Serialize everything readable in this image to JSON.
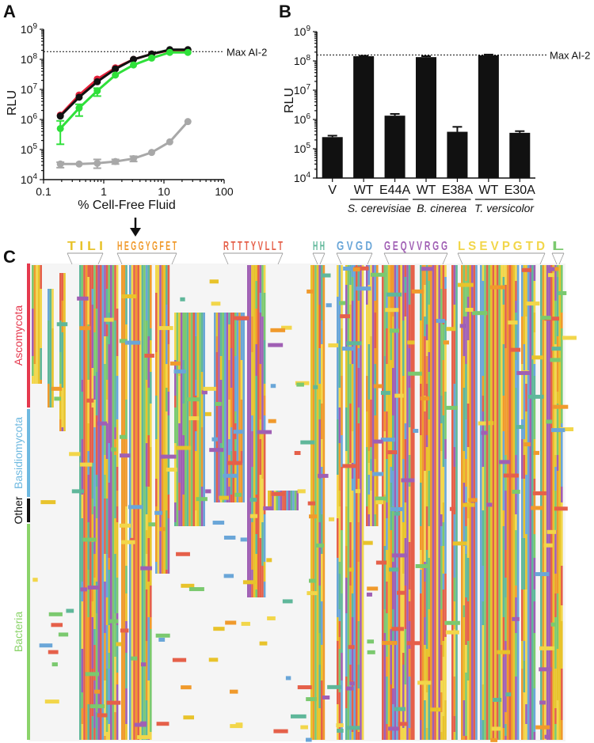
{
  "panels": {
    "A": "A",
    "B": "B",
    "C": "C"
  },
  "colors": {
    "red": "#e5203a",
    "black": "#111111",
    "green": "#2fe03a",
    "gray": "#a8a8a8",
    "ascomycota": "#e5394e",
    "basidiomycota": "#6fb9e0",
    "other": "#111111",
    "bacteria": "#8bd36a"
  },
  "chart_data": [
    {
      "id": "A",
      "type": "line",
      "xlabel": "% Cell-Free Fluid",
      "ylabel": "RLU",
      "xscale": "log",
      "yscale": "log",
      "xlim": [
        0.1,
        100
      ],
      "ylim": [
        10000,
        1000000000
      ],
      "x_ticks": [
        "0.1",
        "1",
        "10",
        "100"
      ],
      "y_ticks": [
        {
          "base": "10",
          "exp": "4"
        },
        {
          "base": "10",
          "exp": "5"
        },
        {
          "base": "10",
          "exp": "6"
        },
        {
          "base": "10",
          "exp": "7"
        },
        {
          "base": "10",
          "exp": "8"
        },
        {
          "base": "10",
          "exp": "9"
        }
      ],
      "reference_line": {
        "label": "Max AI-2",
        "value": 180000000
      },
      "x": [
        0.19,
        0.39,
        0.78,
        1.56,
        3.12,
        6.25,
        12.5,
        25
      ],
      "series": [
        {
          "name": "red",
          "color": "#e5203a",
          "values": [
            1400000,
            6500000,
            22000000,
            52000000,
            100000000,
            150000000,
            200000000,
            200000000
          ],
          "err_low": [
            1400000,
            6500000,
            22000000,
            52000000,
            100000000,
            150000000,
            200000000,
            200000000
          ],
          "err_high": [
            1400000,
            6500000,
            22000000,
            52000000,
            100000000,
            150000000,
            200000000,
            200000000
          ]
        },
        {
          "name": "black",
          "color": "#111111",
          "values": [
            1300000,
            5500000,
            18000000,
            48000000,
            100000000,
            150000000,
            210000000,
            210000000
          ],
          "err_low": [
            1300000,
            5500000,
            18000000,
            48000000,
            100000000,
            150000000,
            210000000,
            210000000
          ],
          "err_high": [
            1300000,
            5500000,
            18000000,
            48000000,
            100000000,
            150000000,
            210000000,
            210000000
          ]
        },
        {
          "name": "green",
          "color": "#2fe03a",
          "values": [
            500000,
            2400000,
            9000000,
            30000000,
            65000000,
            110000000,
            170000000,
            170000000
          ],
          "err_low": [
            150000,
            1300000,
            6000000,
            30000000,
            65000000,
            110000000,
            170000000,
            170000000
          ],
          "err_high": [
            900000,
            3200000,
            11000000,
            30000000,
            65000000,
            110000000,
            170000000,
            170000000
          ]
        },
        {
          "name": "gray",
          "color": "#a8a8a8",
          "values": [
            33000,
            33000,
            35000,
            40000,
            50000,
            80000,
            180000,
            850000
          ],
          "err_low": [
            25000,
            33000,
            24000,
            33000,
            40000,
            80000,
            180000,
            850000
          ],
          "err_high": [
            38000,
            33000,
            47000,
            47000,
            60000,
            80000,
            180000,
            850000
          ]
        }
      ]
    },
    {
      "id": "B",
      "type": "bar",
      "ylabel": "RLU",
      "yscale": "log",
      "ylim": [
        10000,
        1000000000
      ],
      "y_ticks": [
        {
          "base": "10",
          "exp": "4"
        },
        {
          "base": "10",
          "exp": "5"
        },
        {
          "base": "10",
          "exp": "6"
        },
        {
          "base": "10",
          "exp": "7"
        },
        {
          "base": "10",
          "exp": "8"
        },
        {
          "base": "10",
          "exp": "9"
        }
      ],
      "reference_line": {
        "label": "Max AI-2",
        "value": 160000000
      },
      "categories": [
        "V",
        "WT",
        "E44A",
        "WT",
        "E38A",
        "WT",
        "E30A"
      ],
      "values": [
        250000,
        145000000,
        1350000,
        135000000,
        380000,
        155000000,
        350000
      ],
      "errors": [
        280000,
        150000000,
        1550000,
        145000000,
        560000,
        165000000,
        400000
      ],
      "groups": [
        {
          "label": "S. cerevisiae",
          "members": [
            1,
            2
          ]
        },
        {
          "label": "B. cinerea",
          "members": [
            3,
            4
          ]
        },
        {
          "label": "T. versicolor",
          "members": [
            5,
            6
          ]
        }
      ]
    }
  ],
  "alignment": {
    "title": "C",
    "taxa": [
      {
        "label": "Ascomycota",
        "color": "#e5394e"
      },
      {
        "label": "Basidiomycota",
        "color": "#6fb9e0"
      },
      {
        "label": "Other",
        "color": "#111111"
      },
      {
        "label": "Bacteria",
        "color": "#8bd36a"
      }
    ],
    "logo_segments": [
      "T I L I",
      "H E G G Y G F E T",
      "R T T T Y V L L T",
      "H H",
      "G V G D",
      "G E Q V V R G G",
      "L S E V P G T D",
      "L"
    ],
    "residue_colors": [
      "#e8c32b",
      "#f09a2c",
      "#e5604a",
      "#5fb79a",
      "#6aa6d8",
      "#a05fb4",
      "#f2d64a",
      "#7bc96f"
    ]
  }
}
